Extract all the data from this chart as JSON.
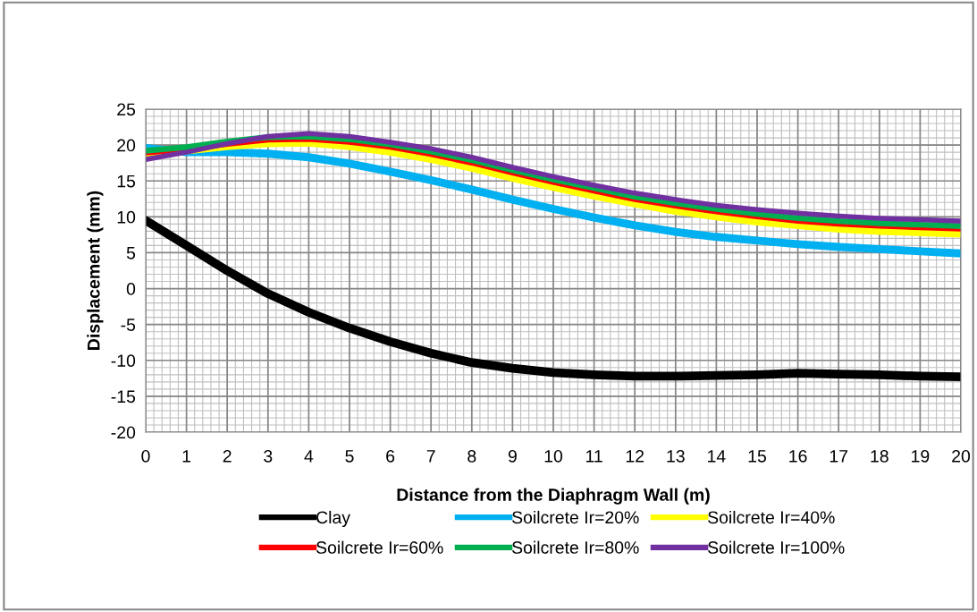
{
  "chart_data": {
    "type": "line",
    "xlabel": "Distance from the Diaphragm Wall (m)",
    "ylabel": "Displacement (mm)",
    "x": [
      0,
      1,
      2,
      3,
      4,
      5,
      6,
      7,
      8,
      9,
      10,
      11,
      12,
      13,
      14,
      15,
      16,
      17,
      18,
      19,
      20
    ],
    "series": [
      {
        "name": "Clay",
        "color": "#000000",
        "values": [
          9.5,
          6,
          2.5,
          -0.7,
          -3.3,
          -5.5,
          -7.4,
          -9,
          -10.3,
          -11.1,
          -11.7,
          -12,
          -12.2,
          -12.2,
          -12.1,
          -12,
          -11.8,
          -11.9,
          -12,
          -12.2,
          -12.3
        ]
      },
      {
        "name": "Soilcrete Ir=20%",
        "color": "#00b0f0",
        "values": [
          19.6,
          19,
          19,
          18.8,
          18.3,
          17.4,
          16.3,
          15.1,
          13.8,
          12.4,
          11.1,
          9.9,
          8.8,
          7.9,
          7.2,
          6.7,
          6.2,
          5.8,
          5.5,
          5.2,
          4.9
        ]
      },
      {
        "name": "Soilcrete Ir=40%",
        "color": "#ffff00",
        "values": [
          18.8,
          19.2,
          19.8,
          20.2,
          20.3,
          19.8,
          19,
          18,
          16.8,
          15.4,
          14.1,
          12.9,
          11.8,
          10.8,
          10,
          9.3,
          8.8,
          8.3,
          8,
          7.8,
          7.6
        ]
      },
      {
        "name": "Soilcrete Ir=60%",
        "color": "#ff0000",
        "values": [
          19,
          19.5,
          20.2,
          20.8,
          20.9,
          20.5,
          19.8,
          18.8,
          17.6,
          16.2,
          14.9,
          13.7,
          12.5,
          11.6,
          10.8,
          10.1,
          9.5,
          9.1,
          8.8,
          8.6,
          8.4
        ]
      },
      {
        "name": "Soilcrete Ir=80%",
        "color": "#00b050",
        "values": [
          19.2,
          19.7,
          20.5,
          21.1,
          21.2,
          20.8,
          20.1,
          19.1,
          17.9,
          16.5,
          15.2,
          14,
          12.8,
          11.9,
          11.1,
          10.4,
          9.8,
          9.4,
          9.1,
          8.9,
          8.7
        ]
      },
      {
        "name": "Soilcrete Ir=100%",
        "color": "#7030a0",
        "values": [
          18,
          19,
          20.2,
          21.2,
          21.6,
          21.2,
          20.4,
          19.5,
          18.3,
          16.9,
          15.6,
          14.4,
          13.3,
          12.4,
          11.6,
          11,
          10.5,
          10.1,
          9.8,
          9.6,
          9.4
        ]
      }
    ],
    "xlim": [
      0,
      20
    ],
    "xticks": [
      0,
      1,
      2,
      3,
      4,
      5,
      6,
      7,
      8,
      9,
      10,
      11,
      12,
      13,
      14,
      15,
      16,
      17,
      18,
      19,
      20
    ],
    "ylim": [
      -20,
      25
    ],
    "yticks": [
      -20,
      -15,
      -10,
      -5,
      0,
      5,
      10,
      15,
      20,
      25
    ],
    "grid": true,
    "legend": "bottom",
    "marker": "none",
    "line_style": "solid"
  }
}
